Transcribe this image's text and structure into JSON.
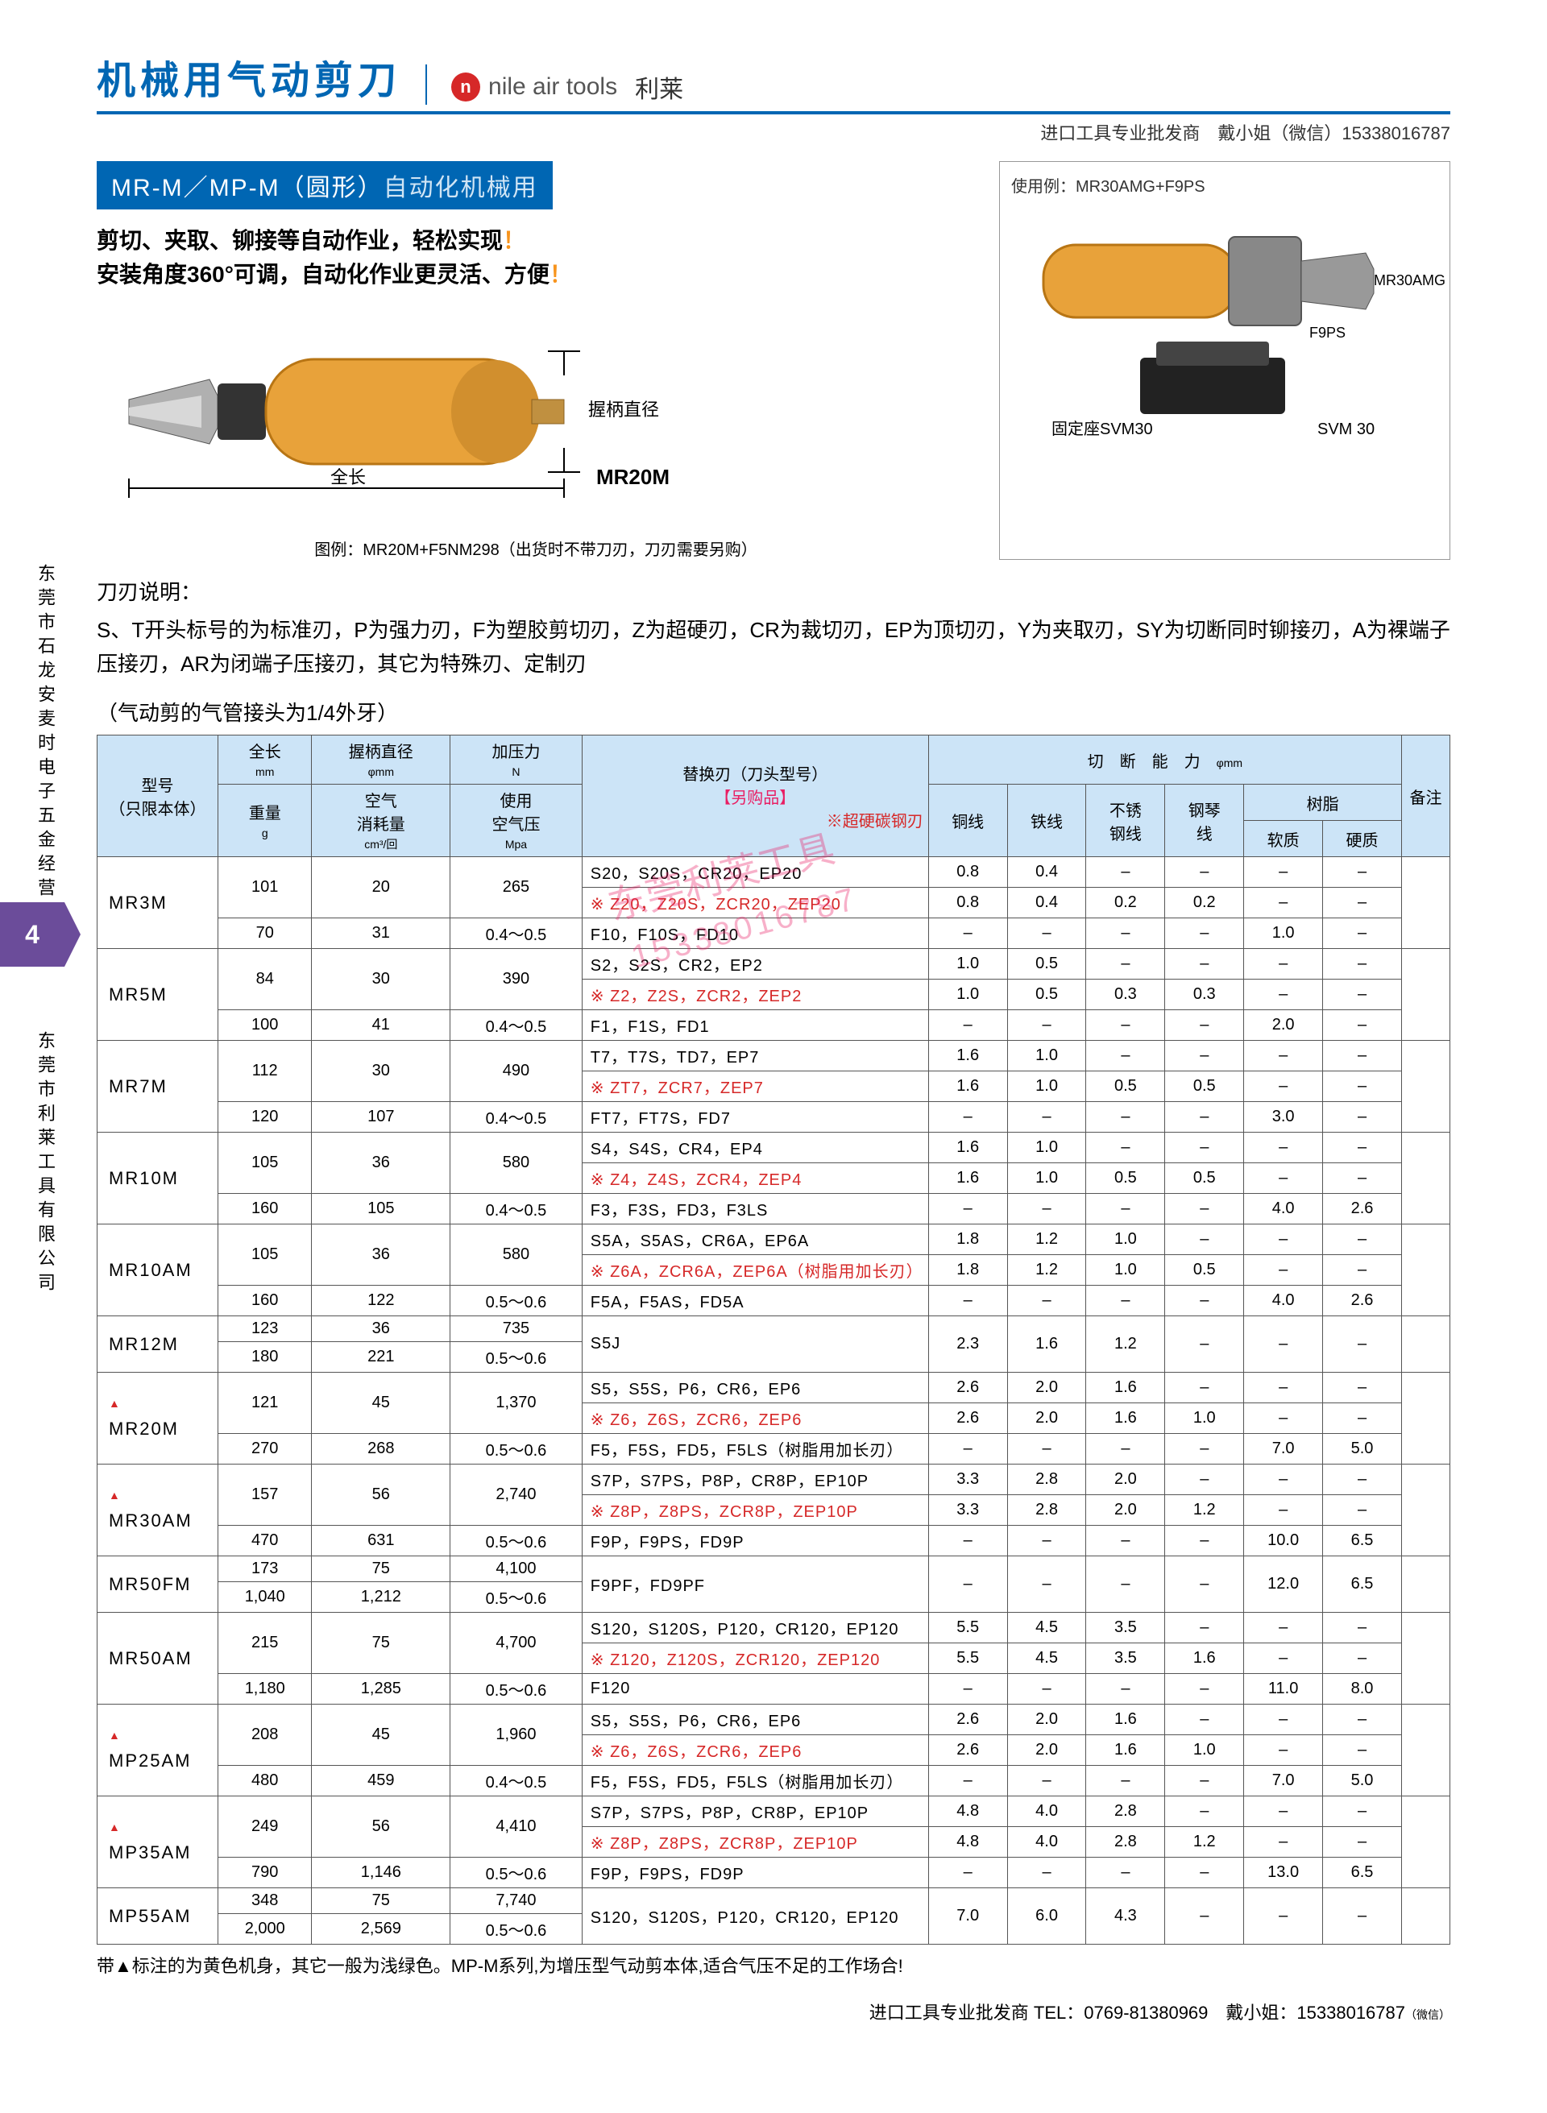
{
  "header": {
    "title": "机械用气动剪刀",
    "brand_en": "nile air tools",
    "brand_cn": "利莱",
    "logo_char": "n"
  },
  "top_contact": "进口工具专业批发商　戴小姐（微信）15338016787",
  "side_text1": "东莞市石龙安麦时电子五金经营部",
  "side_text2": "东莞市利莱工具有限公司",
  "side_num": "4",
  "section_label_a": "MR-M／MP-M（圆形）",
  "section_label_b": "自动化机械用",
  "desc_line1a": "剪切、夹取、铆接等自动作业，轻松实现",
  "desc_line1b": "！",
  "desc_line2a": "安装角度360°可调，自动化作业更灵活、方便",
  "desc_line2b": "！",
  "left_image": {
    "grip_label": "握柄直径",
    "length_label": "全长",
    "model": "MR20M",
    "caption": "图例：MR20M+F5NM298（出货时不带刀刃，刀刃需要另购）"
  },
  "right_image": {
    "title": "使用例：MR30AMG+F9PS",
    "label1": "MR30AMG",
    "label2": "F9PS",
    "label3": "固定座SVM30",
    "label4": "SVM 30"
  },
  "blade_title": "刀刃说明：",
  "blade_desc": "S、T开头标号的为标准刃，P为强力刃，F为塑胶剪切刃，Z为超硬刃，CR为裁切刃，EP为顶切刃，Y为夹取刃，SY为切断同时铆接刃，A为裸端子压接刃，AR为闭端子压接刃，其它为特殊刃、定制刃",
  "table_note": "（气动剪的气管接头为1/4外牙）",
  "headers": {
    "model": "型号\n（只限本体）",
    "length": "全长",
    "length_u": "mm",
    "weight": "重量",
    "weight_u": "g",
    "grip": "握柄直径",
    "grip_u": "φmm",
    "air": "空气\n消耗量",
    "air_u": "cm³/回",
    "force": "加压力",
    "force_u": "N",
    "pressure": "使用\n空气压",
    "pressure_u": "Mpa",
    "blade": "替换刃（刀头型号）",
    "blade_sub": "【另购品】",
    "blade_note": "※超硬碳钢刃",
    "cut": "切　断　能　力",
    "cut_u": "φmm",
    "c1": "铜线",
    "c2": "铁线",
    "c3": "不锈\n钢线",
    "c4": "钢琴\n线",
    "c5": "树脂",
    "c5a": "软质",
    "c5b": "硬质",
    "remark": "备注"
  },
  "rows": [
    {
      "tri": false,
      "model": "MR3M",
      "l": "101",
      "w": "70",
      "g": "20",
      "a": "31",
      "f": "265",
      "p": "0.4～0.5",
      "blades": [
        {
          "t": "S20，S20S，CR20，EP20",
          "v": [
            "0.8",
            "0.4",
            "–",
            "–",
            "–",
            "–"
          ]
        },
        {
          "t": "※ Z20，Z20S，ZCR20，ZEP20",
          "red": true,
          "v": [
            "0.8",
            "0.4",
            "0.2",
            "0.2",
            "–",
            "–"
          ]
        },
        {
          "t": "F10，F10S，FD10",
          "v": [
            "–",
            "–",
            "–",
            "–",
            "1.0",
            "–"
          ]
        }
      ]
    },
    {
      "tri": false,
      "model": "MR5M",
      "l": "84",
      "w": "100",
      "g": "30",
      "a": "41",
      "f": "390",
      "p": "0.4～0.5",
      "blades": [
        {
          "t": "S2，S2S，CR2，EP2",
          "v": [
            "1.0",
            "0.5",
            "–",
            "–",
            "–",
            "–"
          ]
        },
        {
          "t": "※ Z2，Z2S，ZCR2，ZEP2",
          "red": true,
          "v": [
            "1.0",
            "0.5",
            "0.3",
            "0.3",
            "–",
            "–"
          ]
        },
        {
          "t": "F1，F1S，FD1",
          "v": [
            "–",
            "–",
            "–",
            "–",
            "2.0",
            "–"
          ]
        }
      ]
    },
    {
      "tri": false,
      "model": "MR7M",
      "l": "112",
      "w": "120",
      "g": "30",
      "a": "107",
      "f": "490",
      "p": "0.4～0.5",
      "blades": [
        {
          "t": "T7，T7S，TD7，EP7",
          "v": [
            "1.6",
            "1.0",
            "–",
            "–",
            "–",
            "–"
          ]
        },
        {
          "t": "※ ZT7，ZCR7，ZEP7",
          "red": true,
          "v": [
            "1.6",
            "1.0",
            "0.5",
            "0.5",
            "–",
            "–"
          ]
        },
        {
          "t": "FT7，FT7S，FD7",
          "v": [
            "–",
            "–",
            "–",
            "–",
            "3.0",
            "–"
          ]
        }
      ]
    },
    {
      "tri": false,
      "model": "MR10M",
      "l": "105",
      "w": "160",
      "g": "36",
      "a": "105",
      "f": "580",
      "p": "0.4～0.5",
      "blades": [
        {
          "t": "S4，S4S，CR4，EP4",
          "v": [
            "1.6",
            "1.0",
            "–",
            "–",
            "–",
            "–"
          ]
        },
        {
          "t": "※ Z4，Z4S，ZCR4，ZEP4",
          "red": true,
          "v": [
            "1.6",
            "1.0",
            "0.5",
            "0.5",
            "–",
            "–"
          ]
        },
        {
          "t": "F3，F3S，FD3，F3LS",
          "v": [
            "–",
            "–",
            "–",
            "–",
            "4.0",
            "2.6"
          ]
        }
      ]
    },
    {
      "tri": false,
      "model": "MR10AM",
      "l": "105",
      "w": "160",
      "g": "36",
      "a": "122",
      "f": "580",
      "p": "0.5～0.6",
      "blades": [
        {
          "t": "S5A，S5AS，CR6A，EP6A",
          "v": [
            "1.8",
            "1.2",
            "1.0",
            "–",
            "–",
            "–"
          ]
        },
        {
          "t": "※ Z6A，ZCR6A，ZEP6A（树脂用加长刃）",
          "red": true,
          "v": [
            "1.8",
            "1.2",
            "1.0",
            "0.5",
            "–",
            "–"
          ]
        },
        {
          "t": "F5A，F5AS，FD5A",
          "v": [
            "–",
            "–",
            "–",
            "–",
            "4.0",
            "2.6"
          ]
        }
      ]
    },
    {
      "tri": false,
      "model": "MR12M",
      "l": "123",
      "w": "180",
      "g": "36",
      "a": "221",
      "f": "735",
      "p": "0.5～0.6",
      "blades": [
        {
          "t": "S5J",
          "v": [
            "2.3",
            "1.6",
            "1.2",
            "–",
            "–",
            "–"
          ]
        }
      ]
    },
    {
      "tri": true,
      "model": "MR20M",
      "l": "121",
      "w": "270",
      "g": "45",
      "a": "268",
      "f": "1,370",
      "p": "0.5～0.6",
      "blades": [
        {
          "t": "S5，S5S，P6，CR6，EP6",
          "v": [
            "2.6",
            "2.0",
            "1.6",
            "–",
            "–",
            "–"
          ]
        },
        {
          "t": "※ Z6，Z6S，ZCR6，ZEP6",
          "red": true,
          "v": [
            "2.6",
            "2.0",
            "1.6",
            "1.0",
            "–",
            "–"
          ]
        },
        {
          "t": "F5，F5S，FD5，F5LS（树脂用加长刃）",
          "v": [
            "–",
            "–",
            "–",
            "–",
            "7.0",
            "5.0"
          ]
        }
      ]
    },
    {
      "tri": true,
      "model": "MR30AM",
      "l": "157",
      "w": "470",
      "g": "56",
      "a": "631",
      "f": "2,740",
      "p": "0.5～0.6",
      "blades": [
        {
          "t": "S7P，S7PS，P8P，CR8P，EP10P",
          "v": [
            "3.3",
            "2.8",
            "2.0",
            "–",
            "–",
            "–"
          ]
        },
        {
          "t": "※ Z8P，Z8PS，ZCR8P，ZEP10P",
          "red": true,
          "v": [
            "3.3",
            "2.8",
            "2.0",
            "1.2",
            "–",
            "–"
          ]
        },
        {
          "t": "F9P，F9PS，FD9P",
          "v": [
            "–",
            "–",
            "–",
            "–",
            "10.0",
            "6.5"
          ]
        }
      ]
    },
    {
      "tri": false,
      "model": "MR50FM",
      "l": "173",
      "w": "1,040",
      "g": "75",
      "a": "1,212",
      "f": "4,100",
      "p": "0.5～0.6",
      "blades": [
        {
          "t": "F9PF，FD9PF",
          "v": [
            "–",
            "–",
            "–",
            "–",
            "12.0",
            "6.5"
          ]
        }
      ]
    },
    {
      "tri": false,
      "model": "MR50AM",
      "l": "215",
      "w": "1,180",
      "g": "75",
      "a": "1,285",
      "f": "4,700",
      "p": "0.5～0.6",
      "blades": [
        {
          "t": "S120，S120S，P120，CR120，EP120",
          "v": [
            "5.5",
            "4.5",
            "3.5",
            "–",
            "–",
            "–"
          ]
        },
        {
          "t": "※ Z120，Z120S，ZCR120，ZEP120",
          "red": true,
          "v": [
            "5.5",
            "4.5",
            "3.5",
            "1.6",
            "–",
            "–"
          ]
        },
        {
          "t": "F120",
          "v": [
            "–",
            "–",
            "–",
            "–",
            "11.0",
            "8.0"
          ]
        }
      ]
    },
    {
      "tri": true,
      "model": "MP25AM",
      "l": "208",
      "w": "480",
      "g": "45",
      "a": "459",
      "f": "1,960",
      "p": "0.4～0.5",
      "blades": [
        {
          "t": "S5，S5S，P6，CR6，EP6",
          "v": [
            "2.6",
            "2.0",
            "1.6",
            "–",
            "–",
            "–"
          ]
        },
        {
          "t": "※ Z6，Z6S，ZCR6，ZEP6",
          "red": true,
          "v": [
            "2.6",
            "2.0",
            "1.6",
            "1.0",
            "–",
            "–"
          ]
        },
        {
          "t": "F5，F5S，FD5，F5LS（树脂用加长刃）",
          "v": [
            "–",
            "–",
            "–",
            "–",
            "7.0",
            "5.0"
          ]
        }
      ]
    },
    {
      "tri": true,
      "model": "MP35AM",
      "l": "249",
      "w": "790",
      "g": "56",
      "a": "1,146",
      "f": "4,410",
      "p": "0.5～0.6",
      "blades": [
        {
          "t": "S7P，S7PS，P8P，CR8P，EP10P",
          "v": [
            "4.8",
            "4.0",
            "2.8",
            "–",
            "–",
            "–"
          ]
        },
        {
          "t": "※ Z8P，Z8PS，ZCR8P，ZEP10P",
          "red": true,
          "v": [
            "4.8",
            "4.0",
            "2.8",
            "1.2",
            "–",
            "–"
          ]
        },
        {
          "t": "F9P，F9PS，FD9P",
          "v": [
            "–",
            "–",
            "–",
            "–",
            "13.0",
            "6.5"
          ]
        }
      ]
    },
    {
      "tri": false,
      "model": "MP55AM",
      "l": "348",
      "w": "2,000",
      "g": "75",
      "a": "2,569",
      "f": "7,740",
      "p": "0.5～0.6",
      "blades": [
        {
          "t": "S120，S120S，P120，CR120，EP120",
          "v": [
            "7.0",
            "6.0",
            "4.3",
            "–",
            "–",
            "–"
          ]
        }
      ]
    }
  ],
  "foot_note": "带▲标注的为黄色机身，其它一般为浅绿色。MP-M系列,为增压型气动剪本体,适合气压不足的工作场合!",
  "bottom_contact": "进口工具专业批发商 TEL：0769-81380969　戴小姐：15338016787",
  "bottom_wechat": "（微信）",
  "watermark1": "东莞利莱工具",
  "watermark2": "15338016787"
}
